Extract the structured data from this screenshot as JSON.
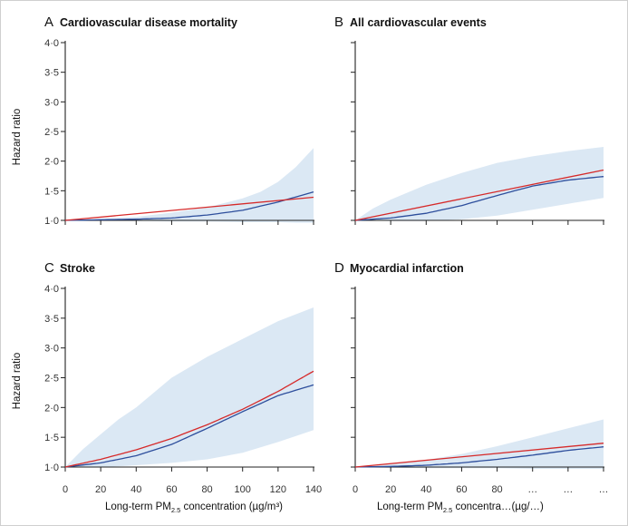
{
  "figure": {
    "y_axis_label": "Hazard ratio",
    "x_axis_label_prefix": "Long-term PM",
    "x_axis_label_subscript": "2.5",
    "x_axis_label_suffix": " concentration (µg/m³)",
    "x_axis_label_suffix_obscured": " concentra…(µg/…)"
  },
  "colors": {
    "red": "#d62a2a",
    "blue": "#2d4e9c",
    "band": "#dbe8f4",
    "axis": "#222222"
  },
  "chart_data": [
    {
      "type": "line",
      "panel": "A",
      "letter": "A",
      "title": "Cardiovascular disease mortality",
      "xlabel": "",
      "ylabel": "Hazard ratio",
      "xlim": [
        0,
        140
      ],
      "ylim": [
        1.0,
        4.0
      ],
      "xticks": [],
      "yticks": [
        1.0,
        1.5,
        2.0,
        2.5,
        3.0,
        3.5,
        4.0
      ],
      "ytick_labels": [
        "1·0",
        "1·5",
        "2·0",
        "2·5",
        "3·0",
        "3·5",
        "4·0"
      ],
      "series": [
        {
          "name": "linear",
          "color": "red",
          "x": [
            0,
            140
          ],
          "y": [
            1.0,
            1.39
          ]
        },
        {
          "name": "spline",
          "color": "blue",
          "x": [
            0,
            20,
            40,
            60,
            80,
            100,
            120,
            140
          ],
          "y": [
            1.0,
            1.01,
            1.02,
            1.04,
            1.09,
            1.17,
            1.31,
            1.48
          ]
        }
      ],
      "band": {
        "x": [
          0,
          20,
          40,
          60,
          80,
          100,
          110,
          120,
          130,
          140
        ],
        "lower": [
          1.0,
          1.0,
          0.99,
          0.98,
          0.98,
          0.97,
          0.97,
          0.97,
          0.96,
          0.96
        ],
        "upper": [
          1.0,
          1.03,
          1.06,
          1.13,
          1.22,
          1.37,
          1.48,
          1.65,
          1.9,
          2.22
        ]
      }
    },
    {
      "type": "line",
      "panel": "B",
      "letter": "B",
      "title": "All cardiovascular events",
      "xlabel": "",
      "ylabel": "",
      "xlim": [
        0,
        140
      ],
      "ylim": [
        1.0,
        4.0
      ],
      "xticks": [],
      "yticks": [],
      "ytick_labels": [],
      "series": [
        {
          "name": "linear",
          "color": "red",
          "x": [
            0,
            140
          ],
          "y": [
            1.0,
            1.85
          ]
        },
        {
          "name": "spline",
          "color": "blue",
          "x": [
            0,
            20,
            40,
            60,
            80,
            100,
            120,
            140
          ],
          "y": [
            1.0,
            1.04,
            1.12,
            1.25,
            1.42,
            1.58,
            1.68,
            1.74
          ]
        }
      ],
      "band": {
        "x": [
          0,
          10,
          20,
          40,
          60,
          80,
          100,
          120,
          140
        ],
        "lower": [
          1.0,
          1.0,
          0.99,
          0.99,
          1.02,
          1.08,
          1.18,
          1.28,
          1.38
        ],
        "upper": [
          1.0,
          1.2,
          1.35,
          1.6,
          1.8,
          1.97,
          2.08,
          2.17,
          2.24
        ]
      }
    },
    {
      "type": "line",
      "panel": "C",
      "letter": "C",
      "title": "Stroke",
      "xlabel": "Long-term PM2.5 concentration (µg/m³)",
      "ylabel": "Hazard ratio",
      "xlim": [
        0,
        140
      ],
      "ylim": [
        1.0,
        4.0
      ],
      "xticks": [
        0,
        20,
        40,
        60,
        80,
        100,
        120,
        140
      ],
      "xtick_labels": [
        "0",
        "20",
        "40",
        "60",
        "80",
        "100",
        "120",
        "140"
      ],
      "yticks": [
        1.0,
        1.5,
        2.0,
        2.5,
        3.0,
        3.5,
        4.0
      ],
      "ytick_labels": [
        "1·0",
        "1·5",
        "2·0",
        "2·5",
        "3·0",
        "3·5",
        "4·0"
      ],
      "series": [
        {
          "name": "linear",
          "color": "red",
          "x": [
            0,
            20,
            40,
            60,
            80,
            100,
            120,
            140
          ],
          "y": [
            1.0,
            1.13,
            1.29,
            1.48,
            1.71,
            1.97,
            2.27,
            2.61
          ]
        },
        {
          "name": "spline",
          "color": "blue",
          "x": [
            0,
            20,
            40,
            60,
            80,
            100,
            120,
            140
          ],
          "y": [
            1.0,
            1.07,
            1.19,
            1.38,
            1.65,
            1.93,
            2.2,
            2.38
          ]
        }
      ],
      "band": {
        "x": [
          0,
          10,
          20,
          30,
          40,
          60,
          80,
          100,
          120,
          140
        ],
        "lower": [
          1.0,
          1.0,
          1.0,
          1.01,
          1.03,
          1.07,
          1.13,
          1.24,
          1.42,
          1.62
        ],
        "upper": [
          1.0,
          1.3,
          1.55,
          1.8,
          2.0,
          2.5,
          2.85,
          3.15,
          3.45,
          3.68
        ]
      }
    },
    {
      "type": "line",
      "panel": "D",
      "letter": "D",
      "title": "Myocardial infarction",
      "xlabel": "Long-term PM2.5 concentration (µg/m³)",
      "ylabel": "",
      "xlim": [
        0,
        140
      ],
      "ylim": [
        1.0,
        4.0
      ],
      "xticks": [
        0,
        20,
        40,
        60,
        80,
        100,
        120,
        140
      ],
      "xtick_labels": [
        "0",
        "20",
        "40",
        "60",
        "80",
        "…",
        "…",
        "…"
      ],
      "yticks": [],
      "ytick_labels": [],
      "series": [
        {
          "name": "linear",
          "color": "red",
          "x": [
            0,
            140
          ],
          "y": [
            1.0,
            1.4
          ]
        },
        {
          "name": "spline",
          "color": "blue",
          "x": [
            0,
            20,
            40,
            60,
            80,
            100,
            120,
            140
          ],
          "y": [
            1.0,
            1.01,
            1.03,
            1.07,
            1.13,
            1.2,
            1.28,
            1.34
          ]
        }
      ],
      "band": {
        "x": [
          0,
          20,
          40,
          60,
          80,
          100,
          120,
          140
        ],
        "lower": [
          1.0,
          0.99,
          0.98,
          0.98,
          0.98,
          0.97,
          0.97,
          0.97
        ],
        "upper": [
          1.0,
          1.06,
          1.12,
          1.22,
          1.35,
          1.5,
          1.65,
          1.8
        ]
      }
    }
  ]
}
